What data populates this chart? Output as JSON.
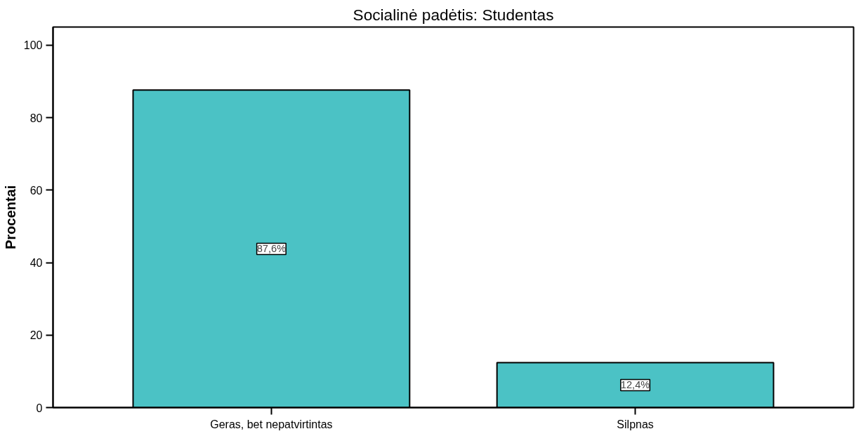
{
  "chart_data": {
    "type": "bar",
    "title": "Socialinė padėtis: Studentas",
    "ylabel": "Procentai",
    "categories": [
      "Geras, bet nepatvirtintas",
      "Silpnas"
    ],
    "values": [
      87.6,
      12.4
    ],
    "value_labels": [
      "87,6%",
      "12,4%"
    ],
    "color": "#4bc2c5",
    "ylim": [
      0,
      105
    ],
    "yticks": [
      0,
      20,
      40,
      60,
      80,
      100
    ],
    "grid": false
  }
}
